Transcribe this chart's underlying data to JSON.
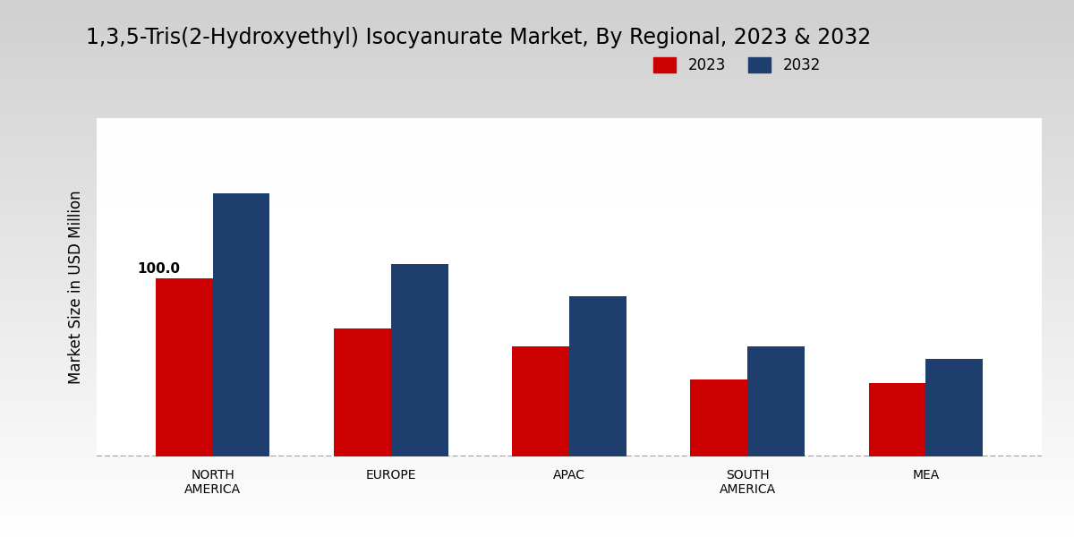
{
  "title": "1,3,5-Tris(2-Hydroxyethyl) Isocyanurate Market, By Regional, 2023 & 2032",
  "categories": [
    "NORTH\nAMERICA",
    "EUROPE",
    "APAC",
    "SOUTH\nAMERICA",
    "MEA"
  ],
  "values_2023": [
    100.0,
    72.0,
    62.0,
    43.0,
    41.0
  ],
  "values_2032": [
    148.0,
    108.0,
    90.0,
    62.0,
    55.0
  ],
  "color_2023": "#cc0000",
  "color_2032": "#1e3f6e",
  "ylabel": "Market Size in USD Million",
  "legend_labels": [
    "2023",
    "2032"
  ],
  "bar_label_value": "100.0",
  "bar_label_index": 0,
  "bg_top": "#d0d0d0",
  "bg_bottom": "#ffffff",
  "ylim": [
    0,
    190
  ],
  "bar_width": 0.32,
  "title_fontsize": 17,
  "ylabel_fontsize": 12,
  "tick_fontsize": 10,
  "legend_fontsize": 12
}
